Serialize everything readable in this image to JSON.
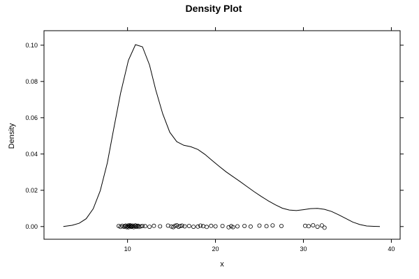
{
  "chart_data": {
    "type": "line",
    "title": "Density Plot",
    "xlabel": "x",
    "ylabel": "Density",
    "xlim": [
      0.5,
      41
    ],
    "ylim": [
      -0.007,
      0.108
    ],
    "x_ticks": [
      {
        "value": 10,
        "label": "10"
      },
      {
        "value": 20,
        "label": "20"
      },
      {
        "value": 30,
        "label": "30"
      },
      {
        "value": 40,
        "label": "40"
      }
    ],
    "y_ticks": [
      {
        "value": 0.0,
        "label": "0.00"
      },
      {
        "value": 0.02,
        "label": "0.02"
      },
      {
        "value": 0.04,
        "label": "0.04"
      },
      {
        "value": 0.06,
        "label": "0.06"
      },
      {
        "value": 0.08,
        "label": "0.08"
      },
      {
        "value": 0.1,
        "label": "0.10"
      }
    ],
    "grid": false,
    "series": [
      {
        "type": "density-curve",
        "x": [
          2.7,
          3.7,
          4.5,
          5.3,
          6.1,
          6.9,
          7.7,
          8.4,
          9.2,
          10.1,
          10.9,
          11.7,
          12.5,
          13.2,
          14.0,
          14.8,
          15.6,
          16.4,
          17.2,
          18.0,
          18.8,
          19.6,
          20.4,
          21.2,
          22.0,
          22.8,
          23.6,
          24.4,
          25.2,
          26.0,
          26.8,
          27.6,
          28.4,
          29.2,
          30.0,
          30.8,
          31.6,
          32.4,
          33.2,
          34.0,
          34.8,
          35.6,
          36.4,
          37.2,
          38.0,
          38.7
        ],
        "y": [
          0.0,
          0.0007,
          0.0018,
          0.0043,
          0.0098,
          0.0198,
          0.0351,
          0.0532,
          0.0734,
          0.0917,
          0.1003,
          0.0991,
          0.0891,
          0.0755,
          0.0622,
          0.052,
          0.0468,
          0.0448,
          0.044,
          0.0425,
          0.0398,
          0.0365,
          0.0333,
          0.0302,
          0.0275,
          0.0248,
          0.022,
          0.0192,
          0.0166,
          0.0142,
          0.012,
          0.0101,
          0.0091,
          0.0088,
          0.0093,
          0.0099,
          0.01,
          0.0095,
          0.0083,
          0.0065,
          0.0045,
          0.0025,
          0.0011,
          0.0003,
          0.0001,
          0.0
        ]
      },
      {
        "type": "rug-points",
        "x": [
          9.0,
          9.2,
          9.4,
          9.6,
          9.7,
          9.8,
          9.9,
          10.0,
          10.1,
          10.1,
          10.2,
          10.3,
          10.4,
          10.4,
          10.5,
          10.6,
          10.7,
          10.8,
          10.9,
          11.0,
          11.1,
          11.2,
          11.3,
          11.5,
          11.7,
          12.0,
          12.5,
          13.0,
          13.7,
          14.6,
          15.0,
          15.2,
          15.4,
          15.6,
          15.8,
          16.0,
          16.2,
          16.5,
          17.0,
          17.5,
          18.0,
          18.3,
          18.6,
          19.0,
          19.5,
          20.0,
          20.8,
          21.5,
          21.8,
          22.0,
          22.5,
          23.3,
          24.0,
          25.0,
          25.8,
          26.5,
          27.5,
          30.2,
          30.6,
          31.1,
          31.6,
          32.1,
          32.4
        ],
        "y": [
          0.0003,
          -0.0002,
          0.0004,
          -0.0001,
          0.0002,
          0.0005,
          -0.0003,
          0.0001,
          0.0006,
          -0.0004,
          0.0002,
          0.0007,
          -0.0002,
          0.0004,
          0.0,
          0.0005,
          -0.0003,
          0.0003,
          0.0006,
          -0.0001,
          0.0002,
          0.0004,
          -0.0002,
          0.0001,
          0.0003,
          0.0002,
          -0.0001,
          0.0004,
          0.0001,
          0.0005,
          0.0,
          -0.0003,
          0.0004,
          0.0007,
          -0.0001,
          0.0003,
          0.0005,
          0.0001,
          0.0003,
          -0.0001,
          0.0,
          0.0005,
          0.0002,
          -0.0002,
          0.0004,
          0.0001,
          0.0003,
          -0.0004,
          0.0002,
          -0.0003,
          0.0001,
          0.0003,
          0.0,
          0.0005,
          0.0002,
          0.0006,
          0.0003,
          0.0004,
          0.0002,
          0.0007,
          -0.0001,
          0.0006,
          -0.0006
        ]
      }
    ]
  }
}
